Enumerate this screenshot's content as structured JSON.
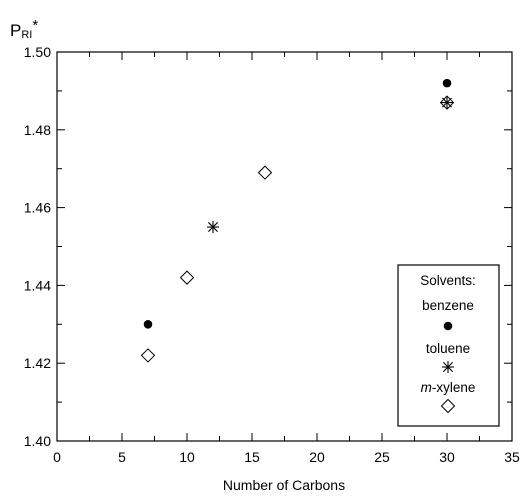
{
  "chart_data": {
    "type": "scatter",
    "ylabel_main": "P",
    "ylabel_sub": "RI",
    "ylabel_sup": "*",
    "xlabel": "Number of Carbons",
    "xlim": [
      0,
      35
    ],
    "ylim": [
      1.4,
      1.5
    ],
    "x_ticks": [
      0,
      5,
      10,
      15,
      20,
      25,
      30,
      35
    ],
    "y_ticks": [
      1.4,
      1.42,
      1.44,
      1.46,
      1.48,
      1.5
    ],
    "y_tick_labels": [
      "1.40",
      "1.42",
      "1.44",
      "1.46",
      "1.48",
      "1.50"
    ],
    "grid": false,
    "legend": {
      "title": "Solvents:",
      "placement": "bottom-right"
    },
    "series": [
      {
        "name": "benzene",
        "marker": "filled-circle",
        "points": [
          [
            7,
            1.43
          ],
          [
            30,
            1.492
          ]
        ]
      },
      {
        "name": "toluene",
        "marker": "asterisk",
        "points": [
          [
            12,
            1.455
          ],
          [
            30,
            1.487
          ]
        ]
      },
      {
        "name": "m-xylene",
        "name_italic": "m",
        "name_rest": "-xylene",
        "marker": "open-diamond",
        "points": [
          [
            7,
            1.422
          ],
          [
            10,
            1.442
          ],
          [
            16,
            1.469
          ],
          [
            30,
            1.487
          ]
        ]
      }
    ]
  }
}
